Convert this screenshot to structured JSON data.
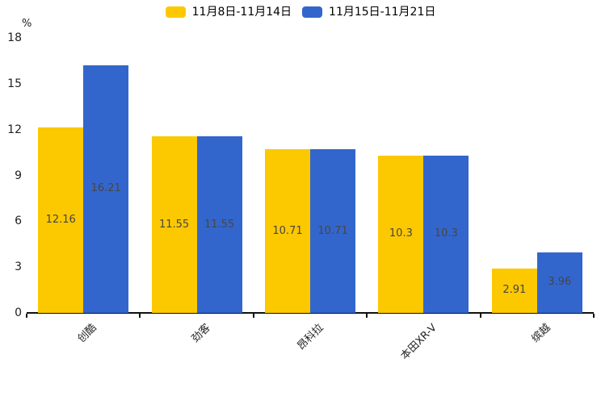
{
  "chart_data": {
    "type": "bar",
    "title": "",
    "ylabel": "%",
    "xlabel": "",
    "categories": [
      "创酷",
      "劲客",
      "昂科拉",
      "本田XR-V",
      "缤越"
    ],
    "series": [
      {
        "name": "11月8日-11月14日",
        "color": "#FCC800",
        "values": [
          12.16,
          11.55,
          10.71,
          10.3,
          2.91
        ]
      },
      {
        "name": "11月15日-11月21日",
        "color": "#3366CC",
        "values": [
          16.21,
          11.55,
          10.71,
          10.3,
          3.96
        ]
      }
    ],
    "yticks": [
      0,
      3,
      6,
      9,
      12,
      15,
      18
    ],
    "ylim": [
      0,
      18
    ],
    "grid": false,
    "legend_position": "top",
    "value_label_position": "inside-center",
    "value_label_color": "#464646",
    "axis_color": "#111111"
  }
}
